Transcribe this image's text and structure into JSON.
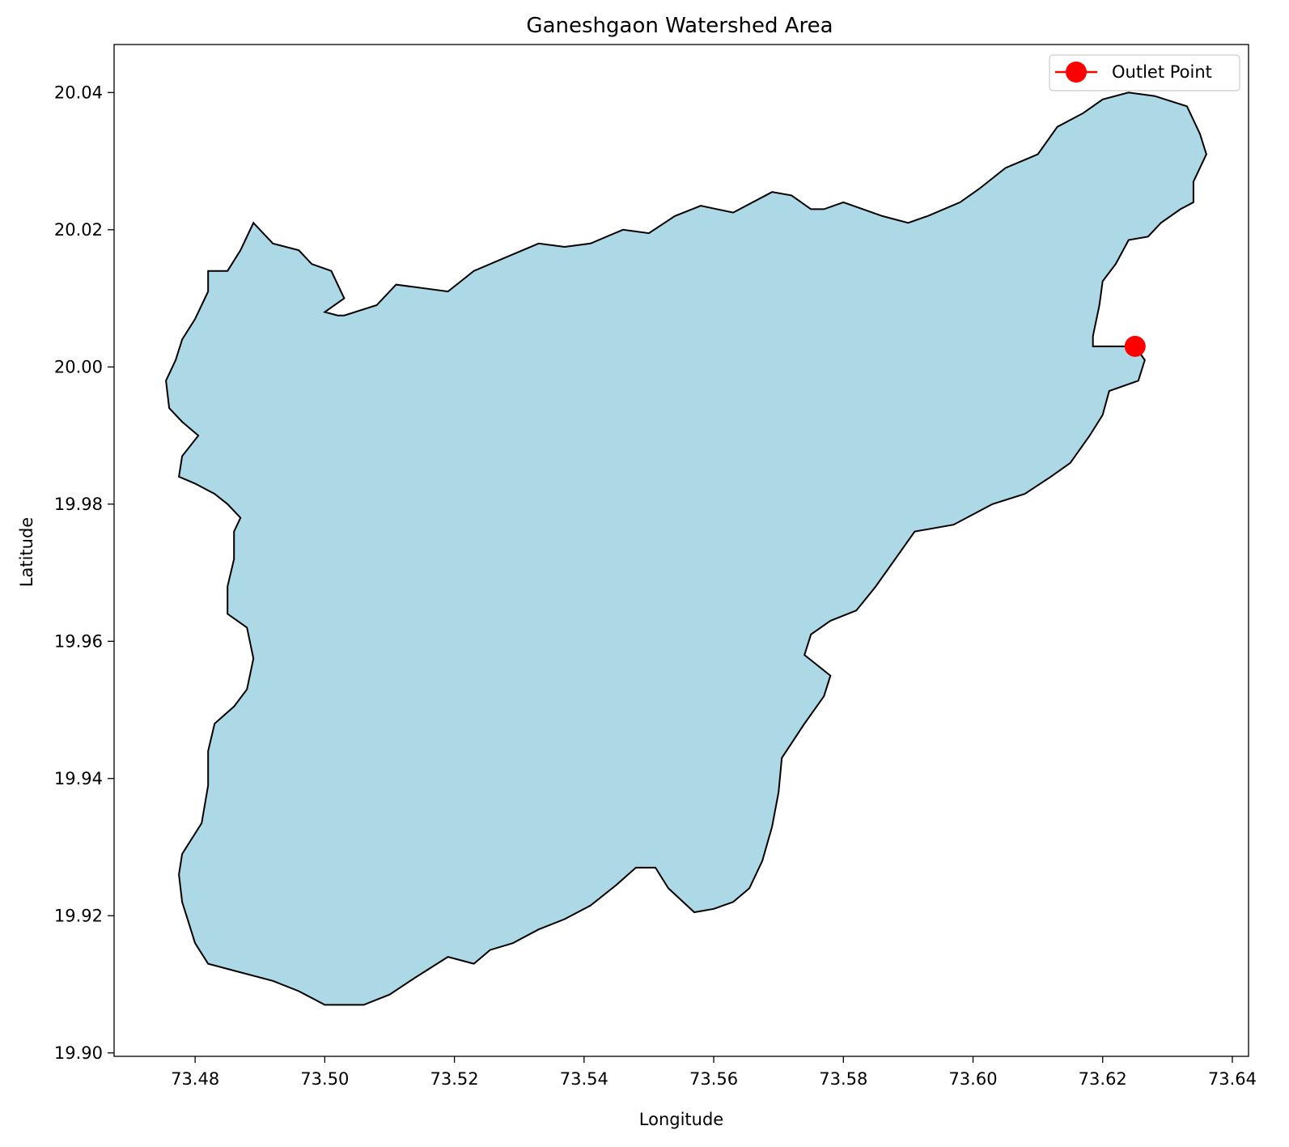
{
  "chart_data": {
    "type": "map",
    "title": "Ganeshgaon Watershed Area",
    "xlabel": "Longitude",
    "ylabel": "Latitude",
    "xlim": [
      73.4675,
      73.6425
    ],
    "ylim": [
      19.8995,
      20.047
    ],
    "x_ticks": [
      "73.48",
      "73.50",
      "73.52",
      "73.54",
      "73.56",
      "73.58",
      "73.60",
      "73.62",
      "73.64"
    ],
    "y_ticks": [
      "19.90",
      "19.92",
      "19.94",
      "19.96",
      "19.98",
      "20.00",
      "20.02",
      "20.04"
    ],
    "grid": false,
    "legend": {
      "position": "top-right",
      "entries": [
        {
          "label": "Outlet Point",
          "color": "#ff0000",
          "marker": "circle"
        }
      ]
    },
    "outlet_point": {
      "lon": 73.625,
      "lat": 20.003,
      "color": "#ff0000"
    },
    "watershed": {
      "fill": "#add8e6",
      "edge": "#000000",
      "boundary": [
        [
          73.489,
          20.021
        ],
        [
          73.492,
          20.018
        ],
        [
          73.496,
          20.017
        ],
        [
          73.498,
          20.015
        ],
        [
          73.501,
          20.014
        ],
        [
          73.503,
          20.01
        ],
        [
          73.5,
          20.008
        ],
        [
          73.502,
          20.0075
        ],
        [
          73.503,
          20.0075
        ],
        [
          73.508,
          20.009
        ],
        [
          73.511,
          20.012
        ],
        [
          73.519,
          20.011
        ],
        [
          73.523,
          20.014
        ],
        [
          73.528,
          20.016
        ],
        [
          73.533,
          20.018
        ],
        [
          73.537,
          20.0175
        ],
        [
          73.541,
          20.018
        ],
        [
          73.546,
          20.02
        ],
        [
          73.55,
          20.0195
        ],
        [
          73.554,
          20.022
        ],
        [
          73.558,
          20.0235
        ],
        [
          73.563,
          20.0225
        ],
        [
          73.569,
          20.0255
        ],
        [
          73.572,
          20.025
        ],
        [
          73.575,
          20.023
        ],
        [
          73.577,
          20.023
        ],
        [
          73.58,
          20.024
        ],
        [
          73.586,
          20.022
        ],
        [
          73.59,
          20.021
        ],
        [
          73.593,
          20.022
        ],
        [
          73.598,
          20.024
        ],
        [
          73.601,
          20.026
        ],
        [
          73.605,
          20.029
        ],
        [
          73.61,
          20.031
        ],
        [
          73.613,
          20.035
        ],
        [
          73.617,
          20.037
        ],
        [
          73.62,
          20.039
        ],
        [
          73.624,
          20.04
        ],
        [
          73.628,
          20.0395
        ],
        [
          73.633,
          20.038
        ],
        [
          73.635,
          20.034
        ],
        [
          73.636,
          20.031
        ],
        [
          73.634,
          20.027
        ],
        [
          73.634,
          20.024
        ],
        [
          73.632,
          20.023
        ],
        [
          73.629,
          20.021
        ],
        [
          73.627,
          20.019
        ],
        [
          73.624,
          20.0185
        ],
        [
          73.622,
          20.015
        ],
        [
          73.62,
          20.0125
        ],
        [
          73.6195,
          20.009
        ],
        [
          73.6185,
          20.0045
        ],
        [
          73.6185,
          20.003
        ],
        [
          73.625,
          20.003
        ],
        [
          73.6265,
          20.001
        ],
        [
          73.6255,
          19.998
        ],
        [
          73.621,
          19.9965
        ],
        [
          73.62,
          19.993
        ],
        [
          73.618,
          19.99
        ],
        [
          73.615,
          19.986
        ],
        [
          73.612,
          19.984
        ],
        [
          73.608,
          19.9815
        ],
        [
          73.603,
          19.98
        ],
        [
          73.597,
          19.977
        ],
        [
          73.591,
          19.976
        ],
        [
          73.588,
          19.972
        ],
        [
          73.585,
          19.968
        ],
        [
          73.582,
          19.9645
        ],
        [
          73.578,
          19.963
        ],
        [
          73.575,
          19.961
        ],
        [
          73.574,
          19.958
        ],
        [
          73.576,
          19.9565
        ],
        [
          73.578,
          19.955
        ],
        [
          73.577,
          19.952
        ],
        [
          73.574,
          19.948
        ],
        [
          73.5705,
          19.943
        ],
        [
          73.57,
          19.938
        ],
        [
          73.569,
          19.933
        ],
        [
          73.5675,
          19.928
        ],
        [
          73.5655,
          19.924
        ],
        [
          73.563,
          19.922
        ],
        [
          73.56,
          19.921
        ],
        [
          73.557,
          19.9205
        ],
        [
          73.553,
          19.924
        ],
        [
          73.551,
          19.927
        ],
        [
          73.548,
          19.927
        ],
        [
          73.545,
          19.9245
        ],
        [
          73.541,
          19.9215
        ],
        [
          73.537,
          19.9195
        ],
        [
          73.533,
          19.918
        ],
        [
          73.529,
          19.916
        ],
        [
          73.5255,
          19.915
        ],
        [
          73.523,
          19.913
        ],
        [
          73.519,
          19.914
        ],
        [
          73.514,
          19.911
        ],
        [
          73.51,
          19.9085
        ],
        [
          73.506,
          19.907
        ],
        [
          73.5,
          19.907
        ],
        [
          73.496,
          19.909
        ],
        [
          73.492,
          19.9105
        ],
        [
          73.486,
          19.912
        ],
        [
          73.482,
          19.913
        ],
        [
          73.48,
          19.916
        ],
        [
          73.479,
          19.919
        ],
        [
          73.478,
          19.922
        ],
        [
          73.4775,
          19.926
        ],
        [
          73.478,
          19.929
        ],
        [
          73.481,
          19.9335
        ],
        [
          73.482,
          19.939
        ],
        [
          73.482,
          19.944
        ],
        [
          73.483,
          19.948
        ],
        [
          73.486,
          19.9505
        ],
        [
          73.488,
          19.953
        ],
        [
          73.489,
          19.9575
        ],
        [
          73.488,
          19.962
        ],
        [
          73.485,
          19.964
        ],
        [
          73.485,
          19.968
        ],
        [
          73.486,
          19.972
        ],
        [
          73.486,
          19.976
        ],
        [
          73.487,
          19.978
        ],
        [
          73.485,
          19.98
        ],
        [
          73.483,
          19.9815
        ],
        [
          73.48,
          19.983
        ],
        [
          73.4775,
          19.984
        ],
        [
          73.478,
          19.987
        ],
        [
          73.4805,
          19.99
        ],
        [
          73.478,
          19.992
        ],
        [
          73.476,
          19.994
        ],
        [
          73.4755,
          19.998
        ],
        [
          73.477,
          20.001
        ],
        [
          73.478,
          20.004
        ],
        [
          73.48,
          20.007
        ],
        [
          73.482,
          20.011
        ],
        [
          73.482,
          20.014
        ],
        [
          73.485,
          20.014
        ],
        [
          73.487,
          20.017
        ]
      ]
    }
  }
}
